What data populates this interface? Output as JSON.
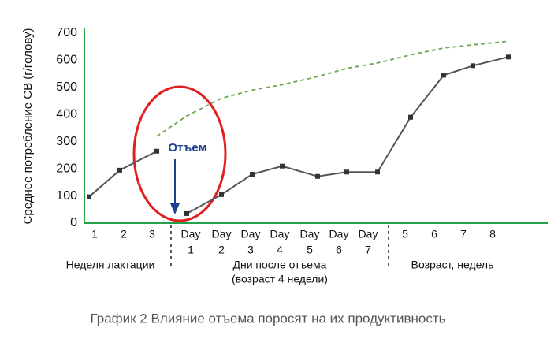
{
  "chart_data": {
    "type": "line",
    "y_label": "Среднее потребление СВ (г/голову)",
    "caption": "График 2 Влияние отъема поросят на их продуктивность",
    "annotation": "Отъем",
    "groups": [
      "Неделя лактации",
      "Дни после отъема",
      "(возраст 4 недели)",
      "Возраст, недель"
    ],
    "categories": [
      "1",
      "2",
      "3",
      [
        "Day",
        "1"
      ],
      [
        "Day",
        "2"
      ],
      [
        "Day",
        "3"
      ],
      [
        "Day",
        "4"
      ],
      [
        "Day",
        "5"
      ],
      [
        "Day",
        "6"
      ],
      [
        "Day",
        "7"
      ],
      "5",
      "6",
      "7",
      "8"
    ],
    "series": [
      {
        "color": "#555555",
        "values": [
          97,
          195,
          265,
          null,
          null,
          null,
          null,
          null,
          null,
          null,
          null,
          null,
          null,
          null
        ]
      },
      {
        "color": "#555555",
        "values": [
          null,
          null,
          null,
          35,
          105,
          180,
          210,
          172,
          188,
          188,
          390,
          545,
          580,
          612
        ]
      },
      {
        "color": "#6aa84f",
        "dashed": true,
        "values": [
          null,
          null,
          320,
          395,
          460,
          490,
          510,
          540,
          570,
          590,
          620,
          645,
          657,
          670
        ]
      }
    ],
    "ylim": [
      0,
      700
    ],
    "yticks": [
      0,
      100,
      200,
      300,
      400,
      500,
      600,
      700
    ],
    "axis_color": "#22a04a"
  }
}
